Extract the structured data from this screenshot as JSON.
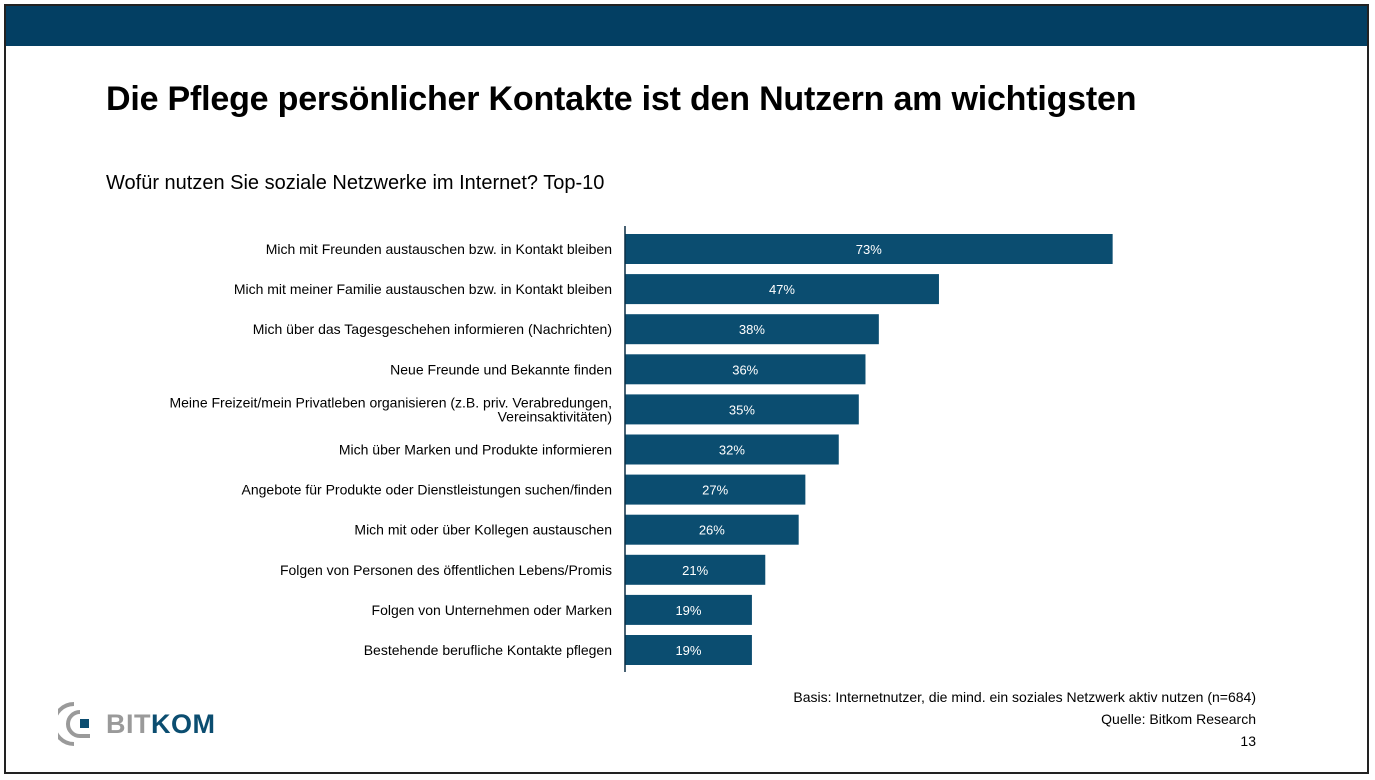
{
  "slide": {
    "title": "Die Pflege persönlicher Kontakte ist den Nutzern am wichtigsten",
    "subtitle": "Wofür nutzen Sie soziale Netzwerke im Internet? Top-10",
    "footer": {
      "basis": "Basis: Internetnutzer, die mind. ein soziales Netzwerk aktiv nutzen (n=684)",
      "source": "Quelle: Bitkom Research",
      "page_number": "13"
    },
    "logo": {
      "part1": "BIT",
      "part2": "KOM",
      "icon": "bitkom-logo-icon"
    },
    "colors": {
      "header_bar": "#033f63",
      "bar": "#0b4d70",
      "logo_gray": "#9a9a9a",
      "logo_blue": "#0b4d70"
    }
  },
  "chart_data": {
    "type": "bar",
    "orientation": "horizontal",
    "title": "Wofür nutzen Sie soziale Netzwerke im Internet? Top-10",
    "xlabel": "",
    "ylabel": "",
    "unit": "%",
    "xlim": [
      0,
      100
    ],
    "grid": false,
    "legend": "none",
    "categories": [
      [
        "Mich mit Freunden austauschen bzw. in Kontakt bleiben"
      ],
      [
        "Mich mit meiner Familie austauschen bzw. in Kontakt bleiben"
      ],
      [
        "Mich über das Tagesgeschehen informieren (Nachrichten)"
      ],
      [
        "Neue Freunde und Bekannte finden"
      ],
      [
        "Meine Freizeit/mein Privatleben organisieren (z.B. priv. Verabredungen,",
        "Vereinsaktivitäten)"
      ],
      [
        "Mich über Marken und Produkte informieren"
      ],
      [
        "Angebote für Produkte oder Dienstleistungen suchen/finden"
      ],
      [
        "Mich mit oder über Kollegen austauschen"
      ],
      [
        "Folgen von Personen des öffentlichen Lebens/Promis"
      ],
      [
        "Folgen von Unternehmen oder Marken"
      ],
      [
        "Bestehende berufliche Kontakte pflegen"
      ]
    ],
    "values": [
      73,
      47,
      38,
      36,
      35,
      32,
      27,
      26,
      21,
      19,
      19
    ],
    "value_labels": [
      "73%",
      "47%",
      "38%",
      "36%",
      "35%",
      "32%",
      "27%",
      "26%",
      "21%",
      "19%",
      "19%"
    ]
  }
}
